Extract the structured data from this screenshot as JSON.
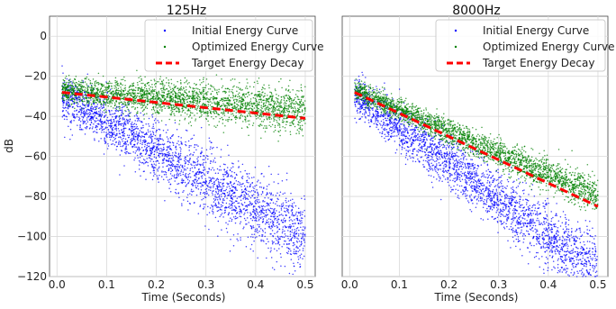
{
  "chart_data": [
    {
      "type": "scatter",
      "title": "125Hz",
      "xlabel": "Time (Seconds)",
      "ylabel": "dB",
      "xlim": [
        -0.015,
        0.52
      ],
      "ylim": [
        -120,
        10
      ],
      "xticks": [
        "0.0",
        "0.1",
        "0.2",
        "0.3",
        "0.4",
        "0.5"
      ],
      "yticks": [
        "0",
        "−20",
        "−40",
        "−60",
        "−80",
        "−100",
        "−120"
      ],
      "grid": true,
      "legend_position": "top-right",
      "series": [
        {
          "name": "Initial Energy Curve",
          "color": "#0000ff",
          "marker": "dot",
          "trend": {
            "x": [
              0.01,
              0.5
            ],
            "y": [
              -30,
              -101
            ]
          },
          "spread_db": 7
        },
        {
          "name": "Optimized Energy Curve",
          "color": "#008000",
          "marker": "dot",
          "trend": {
            "x": [
              0.01,
              0.5
            ],
            "y": [
              -27,
              -37
            ]
          },
          "spread_db": 4
        },
        {
          "name": "Target Energy Decay",
          "color": "#ff0000",
          "style": "dashed-line",
          "x": [
            0.01,
            0.5
          ],
          "y": [
            -28,
            -41
          ]
        }
      ]
    },
    {
      "type": "scatter",
      "title": "8000Hz",
      "xlabel": "Time (Seconds)",
      "ylabel": "",
      "xlim": [
        -0.015,
        0.52
      ],
      "ylim": [
        -120,
        10
      ],
      "xticks": [
        "0.0",
        "0.1",
        "0.2",
        "0.3",
        "0.4",
        "0.5"
      ],
      "yticks": [],
      "grid": true,
      "legend_position": "top-right",
      "series": [
        {
          "name": "Initial Energy Curve",
          "color": "#0000ff",
          "marker": "dot",
          "trend": {
            "x": [
              0.01,
              0.5
            ],
            "y": [
              -30,
              -117
            ]
          },
          "spread_db": 6
        },
        {
          "name": "Optimized Energy Curve",
          "color": "#008000",
          "marker": "dot",
          "trend": {
            "x": [
              0.01,
              0.5
            ],
            "y": [
              -27,
              -80
            ]
          },
          "spread_db": 3
        },
        {
          "name": "Target Energy Decay",
          "color": "#ff0000",
          "style": "dashed-line",
          "x": [
            0.01,
            0.5
          ],
          "y": [
            -28,
            -85
          ]
        }
      ]
    }
  ]
}
